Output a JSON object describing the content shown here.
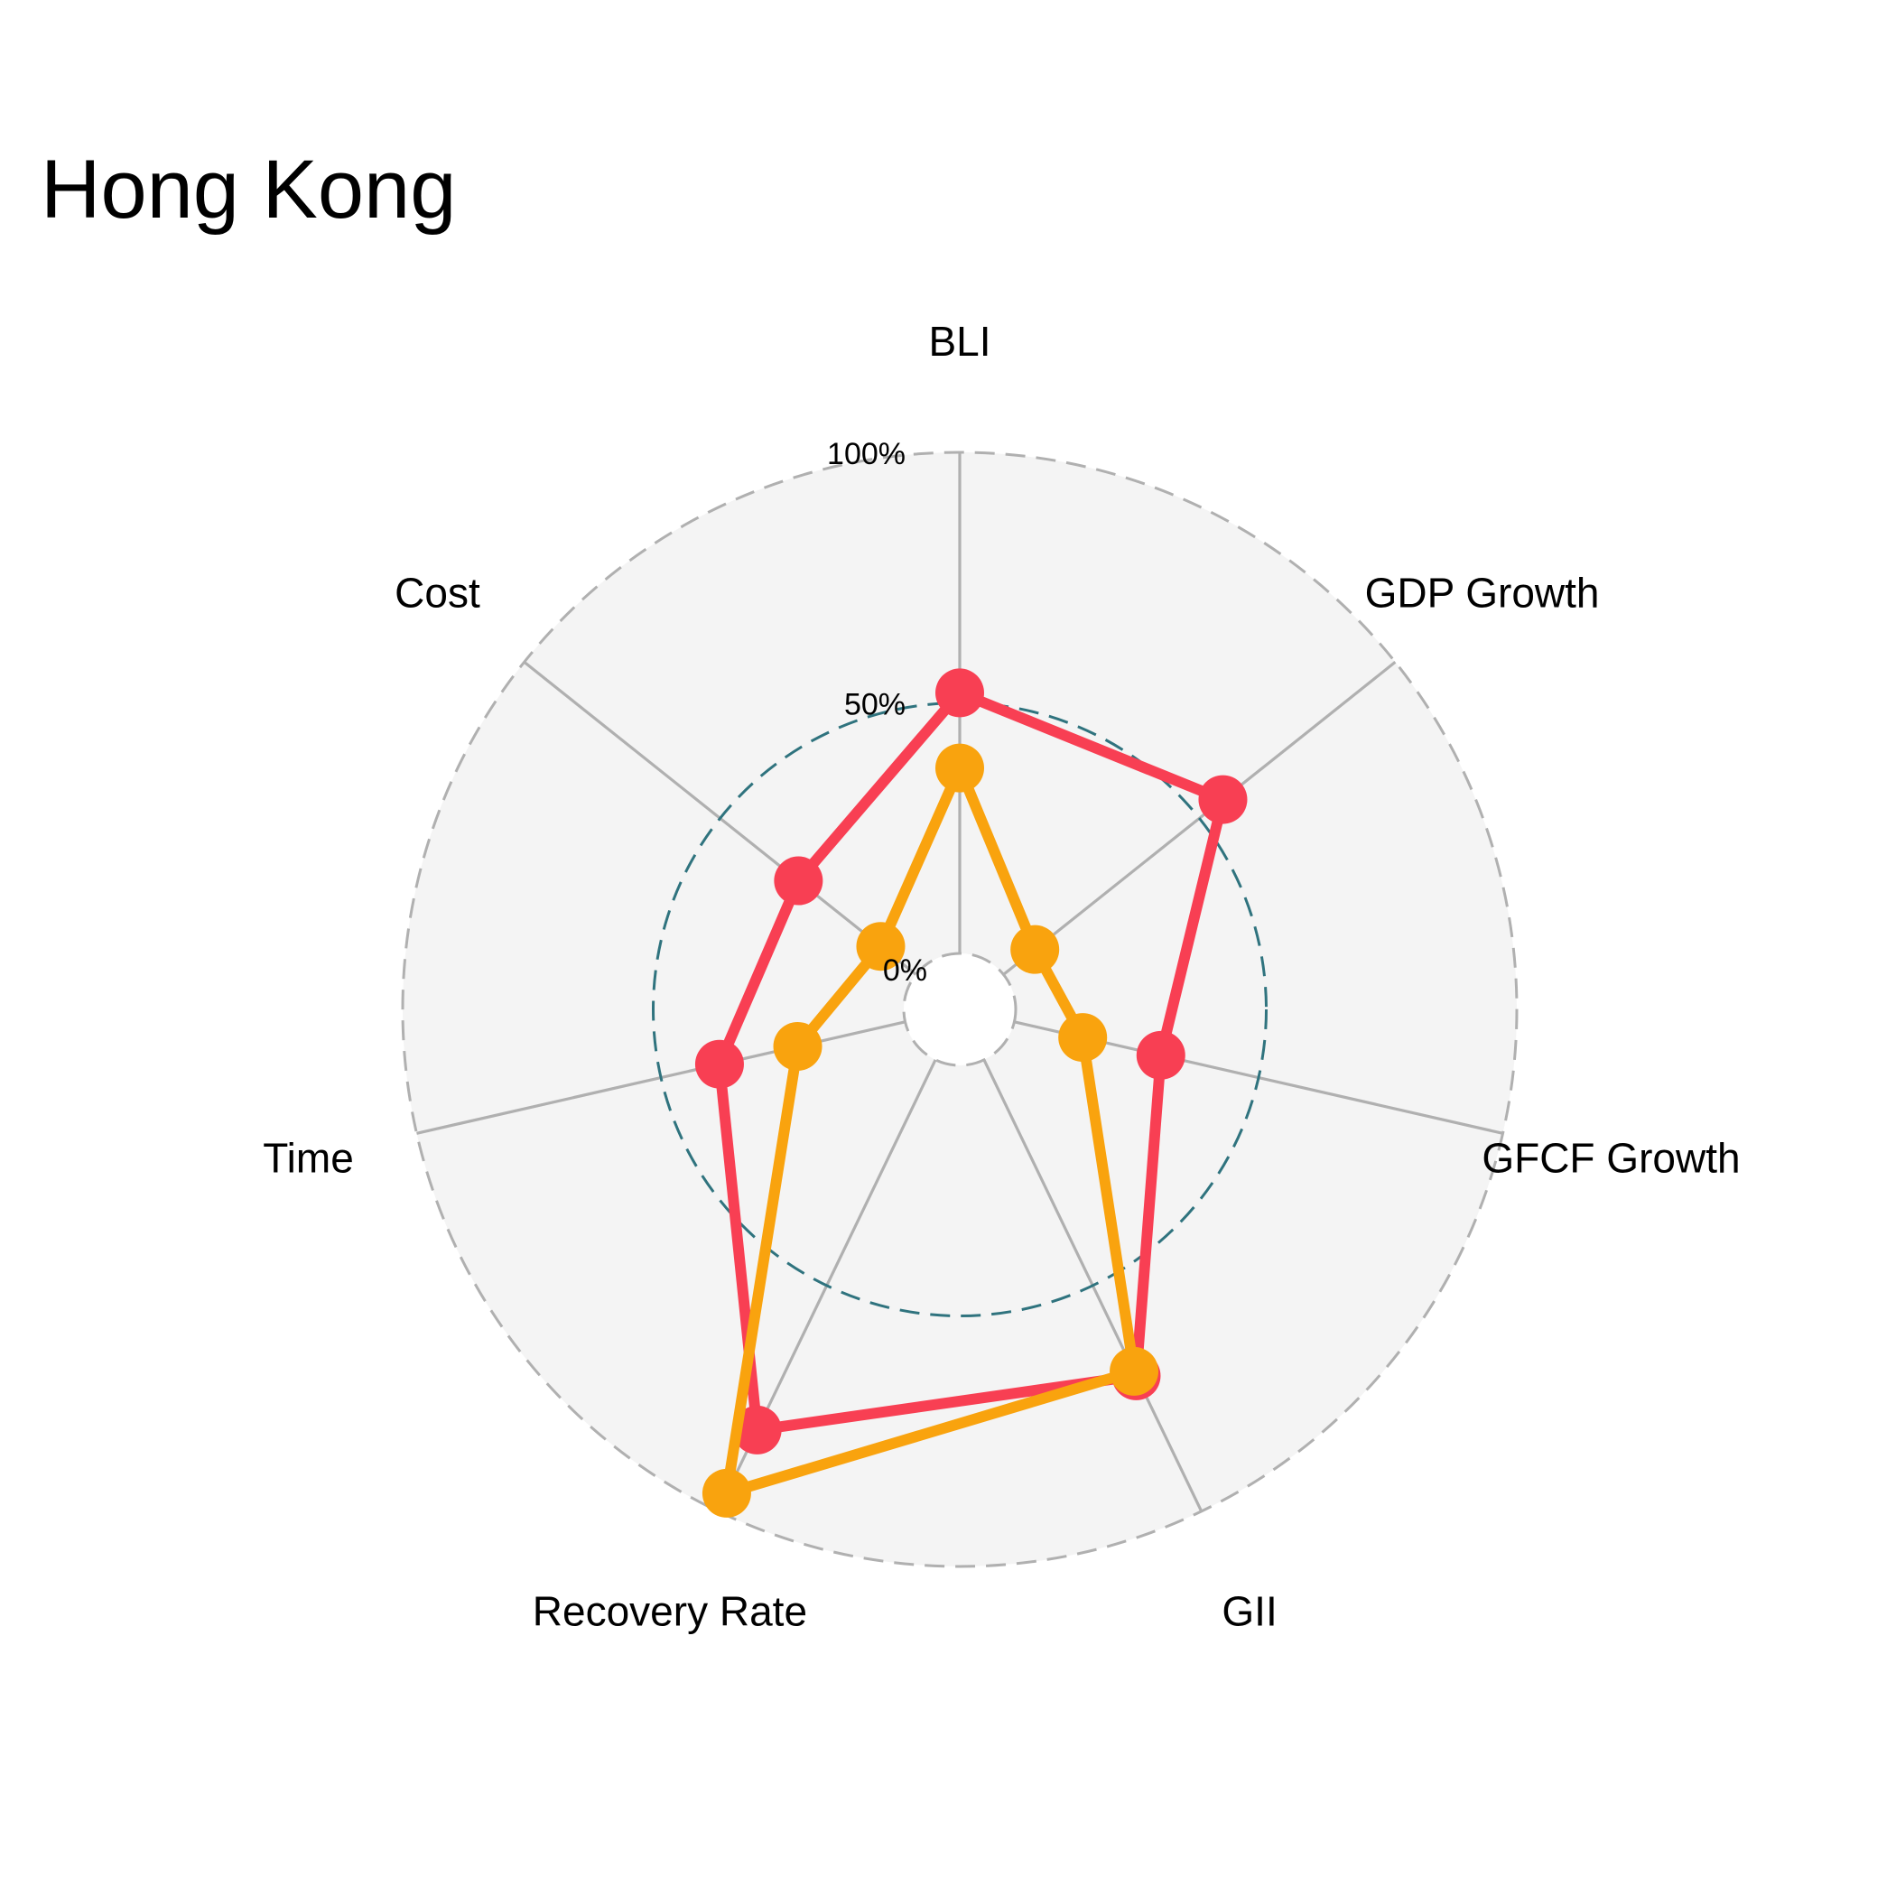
{
  "chart_data": {
    "type": "radar",
    "title": "Hong Kong",
    "axes": [
      "BLI",
      "GDP Growth",
      "GFCF Growth",
      "GII",
      "Recovery Rate",
      "Time",
      "Cost"
    ],
    "rlim": [
      0,
      100
    ],
    "ticks": [
      {
        "value": 0,
        "label": "0%"
      },
      {
        "value": 50,
        "label": "50%"
      },
      {
        "value": 100,
        "label": "100%"
      }
    ],
    "series": [
      {
        "color": "#f83f53",
        "values": [
          52,
          56,
          30,
          70,
          82,
          38,
          30
        ]
      },
      {
        "color": "#f9a30e",
        "values": [
          37,
          8,
          14,
          69,
          96,
          22,
          9
        ]
      }
    ],
    "background": "#f4f4f4",
    "grid": true
  }
}
